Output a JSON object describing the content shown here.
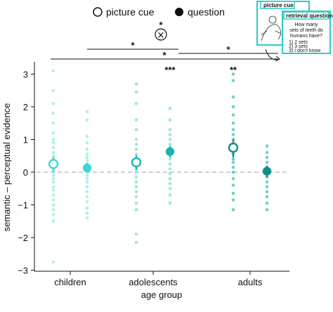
{
  "legend": {
    "picture_cue_label": "picture cue",
    "question_label": "question"
  },
  "inset": {
    "picture_cue_title": "picture cue",
    "retrieval_title": "retrieval question",
    "question_text": [
      "How many",
      "sets of teeth do",
      "humans have?"
    ],
    "options": [
      "1) 2 sets",
      "2) 3 sets",
      "3) I don't know"
    ]
  },
  "interaction": {
    "marker": "×",
    "star": "*"
  },
  "colors": {
    "children": "#3fd6cf",
    "adolescents": "#1ab5ad",
    "adults": "#0e8f88",
    "dots_children": "#a6ece8",
    "dots_adolescents": "#8fe0db",
    "dots_adults": "#5cc7c0",
    "zero_line": "#b5b5b5"
  },
  "chart_data": {
    "type": "scatter",
    "xlabel": "age group",
    "ylabel": "semantic – perceptual evidence",
    "ylim": [
      -3,
      3.3
    ],
    "yticks": [
      -3,
      -2,
      -1,
      0,
      1,
      2,
      3
    ],
    "categories": [
      "children",
      "adolescents",
      "adults"
    ],
    "conditions": [
      "picture cue",
      "question"
    ],
    "reference_line": 0,
    "means": [
      {
        "group": "children",
        "condition": "picture cue",
        "mean": 0.25,
        "ci": [
          0.0,
          0.48
        ]
      },
      {
        "group": "children",
        "condition": "question",
        "mean": 0.13,
        "ci": [
          -0.02,
          0.28
        ]
      },
      {
        "group": "adolescents",
        "condition": "picture cue",
        "mean": 0.3,
        "ci": [
          0.07,
          0.52
        ]
      },
      {
        "group": "adolescents",
        "condition": "question",
        "mean": 0.63,
        "ci": [
          0.45,
          0.8
        ]
      },
      {
        "group": "adults",
        "condition": "picture cue",
        "mean": 0.75,
        "ci": [
          0.45,
          1.0
        ]
      },
      {
        "group": "adults",
        "condition": "question",
        "mean": 0.03,
        "ci": [
          -0.15,
          0.2
        ]
      }
    ],
    "points": [
      {
        "group": "children",
        "condition": "picture cue",
        "values": [
          3.1,
          2.5,
          2.1,
          1.8,
          1.5,
          1.2,
          1.0,
          0.9,
          0.75,
          0.6,
          0.5,
          0.4,
          0.3,
          0.2,
          0.1,
          0.0,
          -0.1,
          -0.2,
          -0.3,
          -0.45,
          -0.55,
          -0.7,
          -0.85,
          -1.0,
          -1.15,
          -1.3,
          -1.5,
          -2.75
        ]
      },
      {
        "group": "children",
        "condition": "question",
        "values": [
          1.85,
          1.6,
          1.1,
          0.9,
          0.7,
          0.55,
          0.45,
          0.35,
          0.25,
          0.15,
          0.05,
          0.0,
          -0.1,
          -0.2,
          -0.3,
          -0.45,
          -0.6,
          -0.75,
          -0.9,
          -1.1,
          -1.25,
          -1.4
        ]
      },
      {
        "group": "adolescents",
        "condition": "picture cue",
        "values": [
          2.7,
          2.45,
          2.1,
          1.6,
          1.3,
          1.0,
          0.85,
          0.7,
          0.55,
          0.4,
          0.25,
          0.1,
          0.0,
          -0.15,
          -0.3,
          -0.45,
          -0.6,
          -0.75,
          -0.95,
          -1.15,
          -1.9,
          -2.15
        ]
      },
      {
        "group": "adolescents",
        "condition": "question",
        "values": [
          1.95,
          1.6,
          1.3,
          1.15,
          1.0,
          0.85,
          0.7,
          0.55,
          0.4,
          0.25,
          0.1,
          -0.05,
          -0.2,
          -0.35,
          -0.5,
          -0.7,
          -0.95
        ]
      },
      {
        "group": "adults",
        "condition": "picture cue",
        "values": [
          3.0,
          2.8,
          2.3,
          2.0,
          1.75,
          1.5,
          1.3,
          1.15,
          1.0,
          0.85,
          0.7,
          0.55,
          0.4,
          0.3,
          0.15,
          0.0,
          -0.2,
          -0.4,
          -0.65,
          -0.85,
          -1.15
        ]
      },
      {
        "group": "adults",
        "condition": "question",
        "values": [
          0.8,
          0.6,
          0.45,
          0.3,
          0.15,
          0.05,
          -0.05,
          -0.15,
          -0.3,
          -0.45,
          -0.6,
          -0.75,
          -0.95,
          -1.15
        ]
      }
    ],
    "significance": [
      {
        "group": "adolescents",
        "label": "***"
      },
      {
        "group": "adults",
        "label": "**"
      }
    ],
    "brackets": [
      {
        "from": "children",
        "to": "adolescents",
        "label": "*",
        "level": 1
      },
      {
        "from": "adolescents",
        "to": "adults",
        "label": "*",
        "level": 2
      },
      {
        "from": "children",
        "to": "adults",
        "label": "*",
        "level": 3
      }
    ]
  }
}
